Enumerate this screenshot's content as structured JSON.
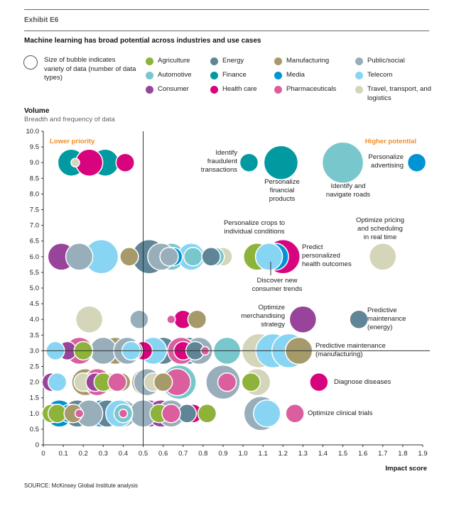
{
  "header": {
    "exhibit": "Exhibit E6",
    "title": "Machine learning has broad potential across industries and use cases"
  },
  "legend": {
    "size_note": "Size of bubble indicates variety of data (number of data types)",
    "items": [
      {
        "label": "Agriculture",
        "color": "#8db33a"
      },
      {
        "label": "Energy",
        "color": "#5f8596"
      },
      {
        "label": "Manufacturing",
        "color": "#a69a6b"
      },
      {
        "label": "Public/social",
        "color": "#98aebb"
      },
      {
        "label": "Automotive",
        "color": "#78c7cc"
      },
      {
        "label": "Finance",
        "color": "#009aa0"
      },
      {
        "label": "Media",
        "color": "#0094d4"
      },
      {
        "label": "Telecom",
        "color": "#88d5f3"
      },
      {
        "label": "Consumer",
        "color": "#97449a"
      },
      {
        "label": "Health care",
        "color": "#d8047d"
      },
      {
        "label": "Pharmaceuticals",
        "color": "#db5e9f"
      },
      {
        "label": "Travel, transport, and logistics",
        "color": "#d5d5ba"
      }
    ]
  },
  "axis": {
    "y_title": "Volume",
    "y_subtitle": "Breadth and frequency of data",
    "x_title": "Impact score"
  },
  "source": "SOURCE: McKinsey Global Institute analysis",
  "chart_data": {
    "type": "scatter",
    "xlim": [
      0,
      1.9
    ],
    "ylim": [
      0,
      10
    ],
    "xticks": [
      "0",
      "0.1",
      "0.2",
      "0.3",
      "0.4",
      "0.5",
      "0.6",
      "0.7",
      "0.8",
      "0.9",
      "1.0",
      "1.1",
      "1.2",
      "1.3",
      "1.4",
      "1.5",
      "1.6",
      "1.7",
      "1.8",
      "1.9"
    ],
    "yticks": [
      "0",
      "0.5",
      "1.0",
      "1.5",
      "2.0",
      "2.5",
      "3.0",
      "3.5",
      "4.0",
      "4.5",
      "5.0",
      "5.5",
      "6.0",
      "6.5",
      "7.0",
      "7.5",
      "8.0",
      "8.5",
      "9.0",
      "9.5",
      "10.0"
    ],
    "reference_lines": {
      "x": 0.5,
      "y": 3.0
    },
    "quadrant_labels": [
      "Lower priority",
      "Higher potential"
    ],
    "quadrant_color": "#f28c28",
    "annotations": [
      {
        "text": "Identify fraudulent transactions",
        "x": 1.03,
        "y": 9.0
      },
      {
        "text": "Personalize financial products",
        "x": 1.19,
        "y": 9.0
      },
      {
        "text": "Identify and navigate roads",
        "x": 1.5,
        "y": 9.0
      },
      {
        "text": "Personalize advertising",
        "x": 1.87,
        "y": 9.0
      },
      {
        "text": "Personalize crops to individual conditions",
        "x": 1.07,
        "y": 6.0
      },
      {
        "text": "Optimize pricing and scheduling in real time",
        "x": 1.7,
        "y": 6.0
      },
      {
        "text": "Predict personalized health outcomes",
        "x": 1.22,
        "y": 6.0
      },
      {
        "text": "Discover new consumer trends",
        "x": 1.12,
        "y": 6.0
      },
      {
        "text": "Optimize merchandising strategy",
        "x": 1.3,
        "y": 4.0
      },
      {
        "text": "Predictive maintenance (energy)",
        "x": 1.58,
        "y": 4.0
      },
      {
        "text": "Predictive maintenance (manufacturing)",
        "x": 1.28,
        "y": 3.0
      },
      {
        "text": "Diagnose diseases",
        "x": 1.38,
        "y": 2.0
      },
      {
        "text": "Optimize clinical trials",
        "x": 1.26,
        "y": 1.0
      }
    ],
    "series": [
      {
        "industry": "Finance",
        "points": [
          [
            0.14,
            9,
            2
          ],
          [
            0.31,
            9,
            2
          ],
          [
            1.03,
            9,
            1
          ],
          [
            1.19,
            9,
            3
          ]
        ]
      },
      {
        "industry": "Health care",
        "points": [
          [
            0.23,
            9,
            2
          ],
          [
            0.41,
            9,
            1
          ],
          [
            0.7,
            4,
            1
          ],
          [
            0.7,
            3,
            1
          ],
          [
            0.5,
            3,
            1
          ],
          [
            1.2,
            6,
            3
          ],
          [
            1.38,
            2,
            1
          ],
          [
            0.75,
            1,
            1
          ],
          [
            0.22,
            2,
            1
          ]
        ]
      },
      {
        "industry": "Travel, transport, and logistics",
        "points": [
          [
            0.16,
            9,
            0.5
          ],
          [
            1.7,
            6,
            2
          ],
          [
            0.9,
            6,
            1
          ],
          [
            0.23,
            4,
            2
          ],
          [
            0.4,
            3,
            2
          ],
          [
            1.08,
            3,
            3
          ],
          [
            1.28,
            3,
            2
          ],
          [
            1.07,
            2,
            2
          ],
          [
            0.2,
            2,
            1
          ],
          [
            0.33,
            2,
            1
          ],
          [
            0.55,
            2,
            1
          ]
        ]
      },
      {
        "industry": "Automotive",
        "points": [
          [
            1.5,
            9,
            4
          ],
          [
            0.64,
            6,
            2
          ],
          [
            0.86,
            6,
            1
          ],
          [
            0.75,
            6,
            1
          ],
          [
            0.43,
            6,
            1
          ],
          [
            0.92,
            3,
            2
          ],
          [
            0.68,
            2,
            3
          ],
          [
            0.4,
            1,
            1
          ]
        ]
      },
      {
        "industry": "Media",
        "points": [
          [
            1.87,
            9,
            1
          ],
          [
            0.65,
            6,
            1
          ],
          [
            1.16,
            6,
            2
          ],
          [
            0.29,
            1,
            2
          ],
          [
            0.08,
            1,
            2
          ],
          [
            0.13,
            1,
            1
          ]
        ]
      },
      {
        "industry": "Consumer",
        "points": [
          [
            0.09,
            6,
            2
          ],
          [
            1.3,
            4,
            2
          ],
          [
            0.12,
            3,
            1
          ],
          [
            0.26,
            2,
            1
          ],
          [
            0.53,
            1,
            2
          ],
          [
            0.59,
            1,
            2
          ],
          [
            0.04,
            2,
            1
          ]
        ]
      },
      {
        "industry": "Energy",
        "points": [
          [
            0.53,
            6,
            3
          ],
          [
            0.84,
            6,
            1
          ],
          [
            1.58,
            4,
            1
          ],
          [
            0.73,
            3,
            2
          ],
          [
            0.76,
            3,
            1
          ],
          [
            0.45,
            3,
            1
          ],
          [
            0.32,
            1,
            2
          ],
          [
            0.17,
            1,
            2
          ],
          [
            0.72,
            1,
            1
          ],
          [
            0.6,
            3,
            2
          ]
        ]
      },
      {
        "industry": "Agriculture",
        "points": [
          [
            1.07,
            6,
            2
          ],
          [
            0.04,
            1,
            1
          ],
          [
            0.82,
            1,
            1
          ],
          [
            1.04,
            2,
            1
          ],
          [
            0.3,
            2,
            1
          ],
          [
            0.58,
            1,
            1
          ],
          [
            0.07,
            1,
            1
          ],
          [
            0.2,
            3,
            1
          ]
        ]
      },
      {
        "industry": "Manufacturing",
        "points": [
          [
            0.43,
            6,
            1
          ],
          [
            1.28,
            3,
            2
          ],
          [
            0.77,
            4,
            1
          ],
          [
            0.36,
            3,
            2
          ],
          [
            0.21,
            2,
            2
          ],
          [
            0.39,
            2,
            1
          ],
          [
            0.51,
            2,
            2
          ],
          [
            0.6,
            2,
            1
          ],
          [
            0.15,
            1,
            1
          ]
        ]
      },
      {
        "industry": "Public/social",
        "points": [
          [
            0.18,
            6,
            2
          ],
          [
            0.59,
            6,
            2
          ],
          [
            0.63,
            6,
            1
          ],
          [
            0.48,
            4,
            1
          ],
          [
            0.3,
            3,
            2
          ],
          [
            0.42,
            3,
            2
          ],
          [
            0.52,
            2,
            2
          ],
          [
            0.9,
            2,
            3
          ],
          [
            0.23,
            1,
            2
          ],
          [
            0.4,
            1,
            2
          ],
          [
            1.09,
            1,
            3
          ],
          [
            0.64,
            1,
            2
          ],
          [
            0.78,
            3,
            2
          ],
          [
            0.5,
            1,
            2
          ]
        ]
      },
      {
        "industry": "Telecom",
        "points": [
          [
            0.29,
            6,
            3
          ],
          [
            0.74,
            6,
            2
          ],
          [
            1.13,
            6,
            2
          ],
          [
            0.06,
            3,
            1
          ],
          [
            0.55,
            3,
            2
          ],
          [
            1.15,
            3,
            3
          ],
          [
            1.23,
            3,
            3
          ],
          [
            0.07,
            2,
            1
          ],
          [
            0.38,
            1,
            2
          ],
          [
            1.12,
            1,
            2
          ],
          [
            0.44,
            3,
            1
          ]
        ]
      },
      {
        "industry": "Pharmaceuticals",
        "points": [
          [
            0.64,
            4,
            0.5
          ],
          [
            0.18,
            3,
            2
          ],
          [
            0.81,
            3,
            0.5
          ],
          [
            0.69,
            3,
            2
          ],
          [
            0.67,
            2,
            2
          ],
          [
            0.92,
            2,
            1
          ],
          [
            0.37,
            2,
            1
          ],
          [
            0.18,
            1,
            0.5
          ],
          [
            0.4,
            1,
            0.5
          ],
          [
            1.26,
            1,
            1
          ],
          [
            0.64,
            1,
            1
          ],
          [
            0.27,
            2,
            2
          ]
        ]
      }
    ]
  }
}
